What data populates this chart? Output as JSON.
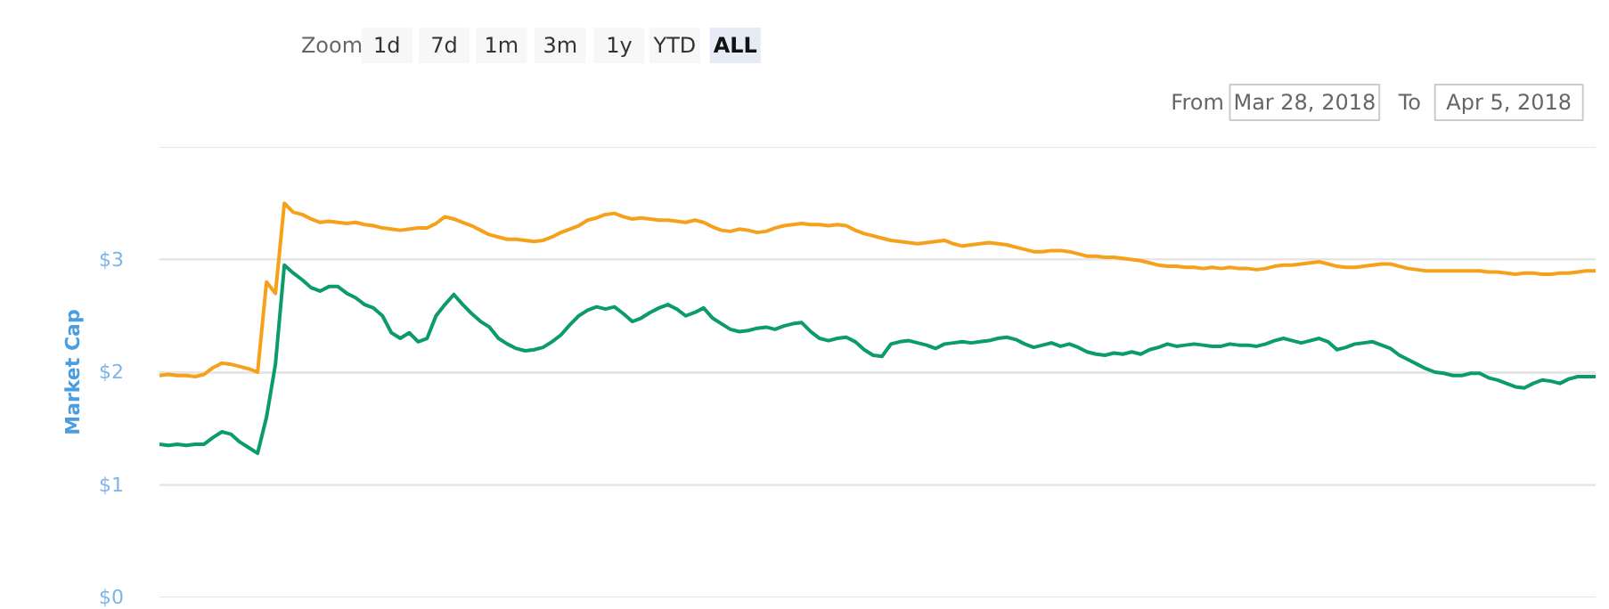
{
  "chart_data": {
    "type": "line",
    "ylabel": "Market Cap",
    "ylim": [
      0,
      4
    ],
    "yticks": [
      {
        "value": 0,
        "label": "$0"
      },
      {
        "value": 1,
        "label": "$1"
      },
      {
        "value": 2,
        "label": "$2"
      },
      {
        "value": 3,
        "label": "$3"
      },
      {
        "value": 4,
        "label": null
      }
    ],
    "grid": "y",
    "tick_labels": "y",
    "marker": "none",
    "line_style": "solid",
    "annotations": [
      "Zoom",
      "1d",
      "7d",
      "1m",
      "3m",
      "1y",
      "YTD",
      "ALL",
      "From",
      "Mar 28, 2018",
      "To",
      "Apr 5, 2018"
    ],
    "categories": [
      null,
      null,
      null,
      null,
      null,
      null,
      null,
      null,
      null,
      null,
      null,
      null,
      null,
      null,
      null,
      null,
      null,
      null,
      null,
      null,
      null,
      null,
      null,
      null,
      null,
      null,
      null,
      null,
      null,
      null,
      null,
      null,
      null,
      null,
      null,
      null,
      null,
      null,
      null,
      null,
      null,
      null,
      null,
      null,
      null,
      null,
      null,
      null,
      null,
      null,
      null,
      null,
      null,
      null,
      null,
      null,
      null,
      null,
      null,
      null,
      null,
      null,
      null,
      null,
      null,
      null,
      null,
      null,
      null,
      null,
      null,
      null,
      null,
      null,
      null,
      null,
      null,
      null,
      null,
      null,
      null,
      null,
      null,
      null,
      null,
      null,
      null,
      null,
      null,
      null,
      null,
      null,
      null,
      null,
      null,
      null,
      null,
      null,
      null,
      null,
      null,
      null,
      null,
      null,
      null,
      null,
      null,
      null,
      null,
      null,
      null,
      null,
      null,
      null,
      null,
      null,
      null,
      null,
      null,
      null,
      null,
      null,
      null,
      null,
      null,
      null,
      null,
      null,
      null,
      null,
      null,
      null,
      null,
      null,
      null,
      null,
      null,
      null,
      null,
      null,
      null,
      null,
      null,
      null,
      null,
      null,
      null,
      null,
      null,
      null,
      null,
      null,
      null,
      null,
      null,
      null,
      null,
      null,
      null,
      null,
      null,
      null
    ],
    "series": [
      {
        "color": "#f5a11c",
        "values": [
          1.97,
          1.98,
          1.97,
          1.97,
          1.96,
          1.98,
          2.04,
          2.08,
          2.07,
          2.05,
          2.03,
          2.0,
          2.8,
          2.7,
          3.5,
          3.42,
          3.4,
          3.36,
          3.33,
          3.34,
          3.33,
          3.32,
          3.33,
          3.31,
          3.3,
          3.28,
          3.27,
          3.26,
          3.27,
          3.28,
          3.28,
          3.32,
          3.38,
          3.36,
          3.33,
          3.3,
          3.26,
          3.22,
          3.2,
          3.18,
          3.18,
          3.17,
          3.16,
          3.17,
          3.2,
          3.24,
          3.27,
          3.3,
          3.35,
          3.37,
          3.4,
          3.41,
          3.38,
          3.36,
          3.37,
          3.36,
          3.35,
          3.35,
          3.34,
          3.33,
          3.35,
          3.33,
          3.29,
          3.26,
          3.25,
          3.27,
          3.26,
          3.24,
          3.25,
          3.28,
          3.3,
          3.31,
          3.32,
          3.31,
          3.31,
          3.3,
          3.31,
          3.3,
          3.26,
          3.23,
          3.21,
          3.19,
          3.17,
          3.16,
          3.15,
          3.14,
          3.15,
          3.16,
          3.17,
          3.14,
          3.12,
          3.13,
          3.14,
          3.15,
          3.14,
          3.13,
          3.11,
          3.09,
          3.07,
          3.07,
          3.08,
          3.08,
          3.07,
          3.05,
          3.03,
          3.03,
          3.02,
          3.02,
          3.01,
          3.0,
          2.99,
          2.97,
          2.95,
          2.94,
          2.94,
          2.93,
          2.93,
          2.92,
          2.93,
          2.92,
          2.93,
          2.92,
          2.92,
          2.91,
          2.92,
          2.94,
          2.95,
          2.95,
          2.96,
          2.97,
          2.98,
          2.96,
          2.94,
          2.93,
          2.93,
          2.94,
          2.95,
          2.96,
          2.96,
          2.94,
          2.92,
          2.91,
          2.9,
          2.9,
          2.9,
          2.9,
          2.9,
          2.9,
          2.9,
          2.89,
          2.89,
          2.88,
          2.87,
          2.88,
          2.88,
          2.87,
          2.87,
          2.88,
          2.88,
          2.89,
          2.9,
          2.9
        ]
      },
      {
        "color": "#0b9b6d",
        "values": [
          1.36,
          1.35,
          1.36,
          1.35,
          1.36,
          1.36,
          1.42,
          1.47,
          1.45,
          1.38,
          1.33,
          1.28,
          1.6,
          2.07,
          2.95,
          2.88,
          2.82,
          2.75,
          2.72,
          2.76,
          2.76,
          2.7,
          2.66,
          2.6,
          2.57,
          2.5,
          2.35,
          2.3,
          2.35,
          2.27,
          2.3,
          2.5,
          2.6,
          2.69,
          2.6,
          2.52,
          2.45,
          2.4,
          2.3,
          2.25,
          2.21,
          2.19,
          2.2,
          2.22,
          2.27,
          2.33,
          2.42,
          2.5,
          2.55,
          2.58,
          2.56,
          2.58,
          2.52,
          2.45,
          2.48,
          2.53,
          2.57,
          2.6,
          2.56,
          2.5,
          2.53,
          2.57,
          2.48,
          2.43,
          2.38,
          2.36,
          2.37,
          2.39,
          2.4,
          2.38,
          2.41,
          2.43,
          2.44,
          2.36,
          2.3,
          2.28,
          2.3,
          2.31,
          2.27,
          2.2,
          2.15,
          2.14,
          2.25,
          2.27,
          2.28,
          2.26,
          2.24,
          2.21,
          2.25,
          2.26,
          2.27,
          2.26,
          2.27,
          2.28,
          2.3,
          2.31,
          2.29,
          2.25,
          2.22,
          2.24,
          2.26,
          2.23,
          2.25,
          2.22,
          2.18,
          2.16,
          2.15,
          2.17,
          2.16,
          2.18,
          2.16,
          2.2,
          2.22,
          2.25,
          2.23,
          2.24,
          2.25,
          2.24,
          2.23,
          2.23,
          2.25,
          2.24,
          2.24,
          2.23,
          2.25,
          2.28,
          2.3,
          2.28,
          2.26,
          2.28,
          2.3,
          2.27,
          2.2,
          2.22,
          2.25,
          2.26,
          2.27,
          2.24,
          2.21,
          2.15,
          2.11,
          2.07,
          2.03,
          2.0,
          1.99,
          1.97,
          1.97,
          1.99,
          1.99,
          1.95,
          1.93,
          1.9,
          1.87,
          1.86,
          1.9,
          1.93,
          1.92,
          1.9,
          1.94,
          1.96,
          1.96,
          1.96
        ]
      }
    ]
  }
}
